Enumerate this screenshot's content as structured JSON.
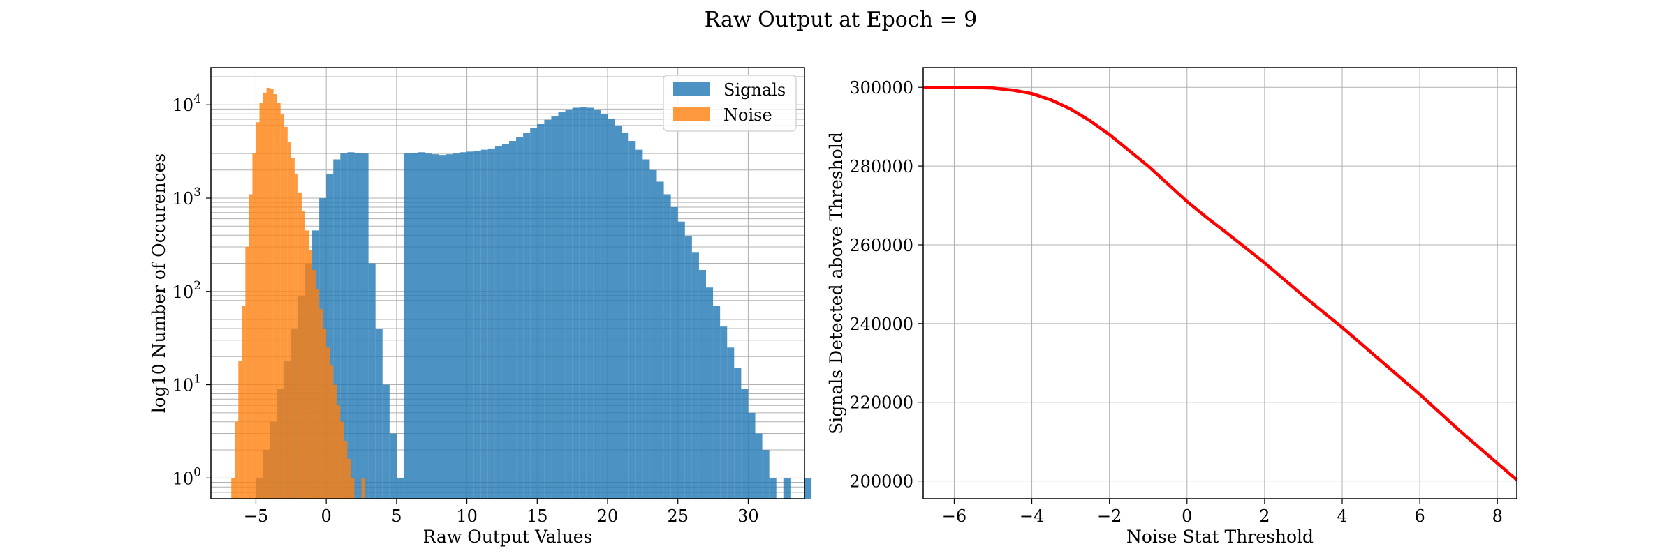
{
  "figure": {
    "title": "Raw Output at Epoch = 9"
  },
  "chart_data": [
    {
      "type": "histogram",
      "title": "",
      "xlabel": "Raw Output Values",
      "ylabel": "log10 Number of Occurences",
      "yscale": "log",
      "xlim": [
        -8.2,
        34
      ],
      "ylim": [
        0.6,
        25000
      ],
      "xticks": [
        -5,
        0,
        5,
        10,
        15,
        20,
        25,
        30
      ],
      "xtick_labels": [
        "−5",
        "0",
        "5",
        "10",
        "15",
        "20",
        "25",
        "30"
      ],
      "yticks": [
        1,
        10,
        100,
        1000,
        10000
      ],
      "ytick_labels": [
        {
          "base": "10",
          "exp": "0"
        },
        {
          "base": "10",
          "exp": "1"
        },
        {
          "base": "10",
          "exp": "2"
        },
        {
          "base": "10",
          "exp": "3"
        },
        {
          "base": "10",
          "exp": "4"
        }
      ],
      "legend_position": "top-right",
      "grid": true,
      "series": [
        {
          "name": "Signals",
          "color": "#1f77b4",
          "bin_start": -6.0,
          "bin_width": 0.5,
          "counts": [
            0,
            0,
            1,
            2,
            4,
            9,
            18,
            40,
            90,
            200,
            450,
            1000,
            1800,
            2600,
            3000,
            3100,
            3050,
            3000,
            200,
            40,
            10,
            3,
            1,
            3000,
            3050,
            3100,
            3000,
            2950,
            2900,
            2950,
            3000,
            3100,
            3150,
            3200,
            3300,
            3400,
            3600,
            3800,
            4100,
            4500,
            5000,
            5600,
            6200,
            6900,
            7600,
            8300,
            8900,
            9300,
            9500,
            9300,
            8800,
            8000,
            7000,
            6000,
            5000,
            4100,
            3300,
            2600,
            2000,
            1500,
            1100,
            800,
            560,
            390,
            260,
            170,
            110,
            70,
            42,
            25,
            15,
            9,
            5,
            3,
            2,
            1,
            0.4,
            1,
            0.4,
            0.4,
            1,
            0,
            0.4,
            0.4
          ]
        },
        {
          "name": "Noise",
          "color": "#ff7f0e",
          "bin_start": -7.0,
          "bin_width": 0.25,
          "counts": [
            0.4,
            1,
            4,
            18,
            70,
            300,
            1100,
            3000,
            6500,
            10500,
            13500,
            15200,
            14800,
            13000,
            10500,
            8000,
            5800,
            4000,
            2700,
            1800,
            1150,
            720,
            450,
            280,
            170,
            105,
            65,
            40,
            25,
            16,
            10,
            6,
            4,
            2.5,
            1.6,
            1,
            0.4,
            0.4,
            1,
            0.4,
            0,
            0,
            0,
            0,
            0.4,
            0.4,
            0,
            0,
            0,
            0,
            0.4
          ]
        }
      ]
    },
    {
      "type": "line",
      "title": "",
      "xlabel": "Noise Stat Threshold",
      "ylabel": "Signals Detected above Threshold",
      "xlim": [
        -6.8,
        8.5
      ],
      "ylim": [
        195500,
        305000
      ],
      "xticks": [
        -6,
        -4,
        -2,
        0,
        2,
        4,
        6,
        8
      ],
      "xtick_labels": [
        "−6",
        "−4",
        "−2",
        "0",
        "2",
        "4",
        "6",
        "8"
      ],
      "yticks": [
        200000,
        220000,
        240000,
        260000,
        280000,
        300000
      ],
      "ytick_labels": [
        "200000",
        "220000",
        "240000",
        "260000",
        "280000",
        "300000"
      ],
      "grid": true,
      "series": [
        {
          "name": "",
          "color": "#ff0000",
          "x": [
            -6.8,
            -6.0,
            -5.5,
            -5.0,
            -4.5,
            -4.0,
            -3.5,
            -3.0,
            -2.5,
            -2.0,
            -1.5,
            -1.0,
            -0.5,
            0.0,
            0.5,
            1.0,
            1.5,
            2.0,
            2.5,
            3.0,
            4.0,
            5.0,
            6.0,
            7.0,
            8.0,
            8.5
          ],
          "y": [
            300000,
            300000,
            300000,
            299800,
            299300,
            298400,
            296800,
            294500,
            291500,
            288000,
            284000,
            280000,
            275500,
            271000,
            267000,
            263200,
            259300,
            255400,
            251200,
            247000,
            239000,
            230500,
            222000,
            213000,
            204500,
            200300
          ]
        }
      ]
    }
  ]
}
